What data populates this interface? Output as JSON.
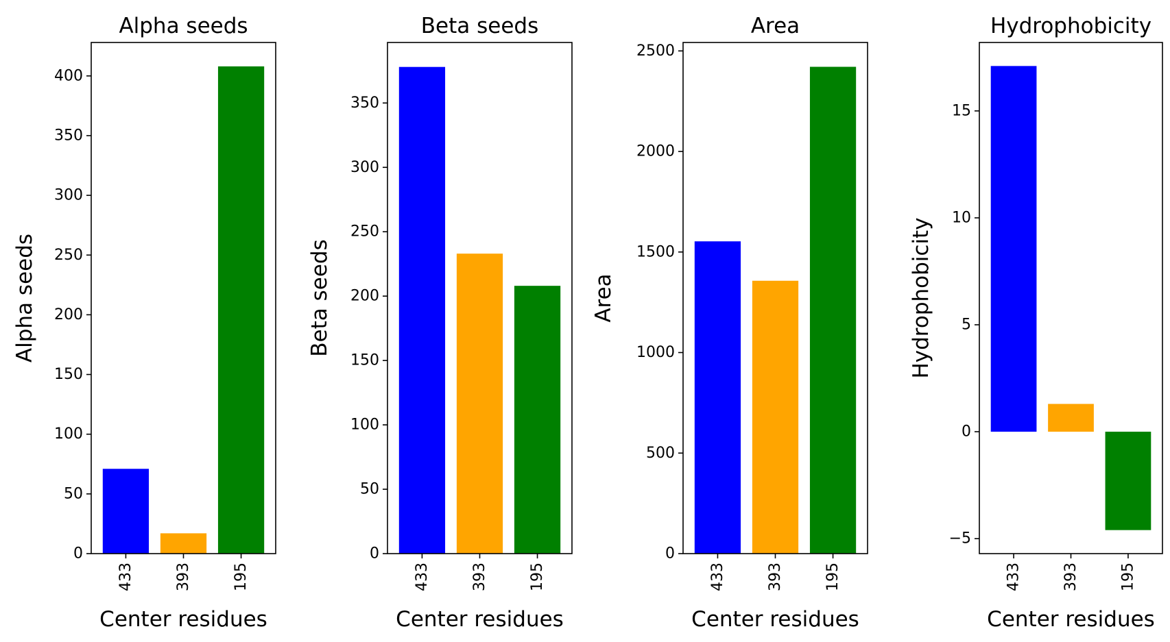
{
  "chart_data": [
    {
      "type": "bar",
      "title": "Alpha seeds",
      "xlabel": "Center residues",
      "ylabel": "Alpha seeds",
      "categories": [
        "433",
        "393",
        "195"
      ],
      "values": [
        71,
        17,
        408
      ],
      "colors": [
        "#0000ff",
        "#ffa500",
        "#008000"
      ],
      "ylim": [
        0,
        428
      ],
      "yticks": [
        0,
        50,
        100,
        150,
        200,
        250,
        300,
        350,
        400
      ],
      "ytick_labels": [
        "0",
        "50",
        "100",
        "150",
        "200",
        "250",
        "300",
        "350",
        "400"
      ]
    },
    {
      "type": "bar",
      "title": "Beta seeds",
      "xlabel": "Center residues",
      "ylabel": "Beta seeds",
      "categories": [
        "433",
        "393",
        "195"
      ],
      "values": [
        378,
        233,
        208
      ],
      "colors": [
        "#0000ff",
        "#ffa500",
        "#008000"
      ],
      "ylim": [
        0,
        397
      ],
      "yticks": [
        0,
        50,
        100,
        150,
        200,
        250,
        300,
        350
      ],
      "ytick_labels": [
        "0",
        "50",
        "100",
        "150",
        "200",
        "250",
        "300",
        "350"
      ]
    },
    {
      "type": "bar",
      "title": "Area",
      "xlabel": "Center residues",
      "ylabel": "Area",
      "categories": [
        "433",
        "393",
        "195"
      ],
      "values": [
        1553,
        1357,
        2421
      ],
      "colors": [
        "#0000ff",
        "#ffa500",
        "#008000"
      ],
      "ylim": [
        0,
        2542
      ],
      "yticks": [
        0,
        500,
        1000,
        1500,
        2000,
        2500
      ],
      "ytick_labels": [
        "0",
        "500",
        "1000",
        "1500",
        "2000",
        "2500"
      ]
    },
    {
      "type": "bar",
      "title": "Hydrophobicity",
      "xlabel": "Center residues",
      "ylabel": "Hydrophobicity",
      "categories": [
        "433",
        "393",
        "195"
      ],
      "values": [
        17.1,
        1.3,
        -4.6
      ],
      "colors": [
        "#0000ff",
        "#ffa500",
        "#008000"
      ],
      "ylim": [
        -5.7,
        18.2
      ],
      "yticks": [
        -5,
        0,
        5,
        10,
        15
      ],
      "ytick_labels": [
        "−5",
        "0",
        "5",
        "10",
        "15"
      ]
    }
  ]
}
